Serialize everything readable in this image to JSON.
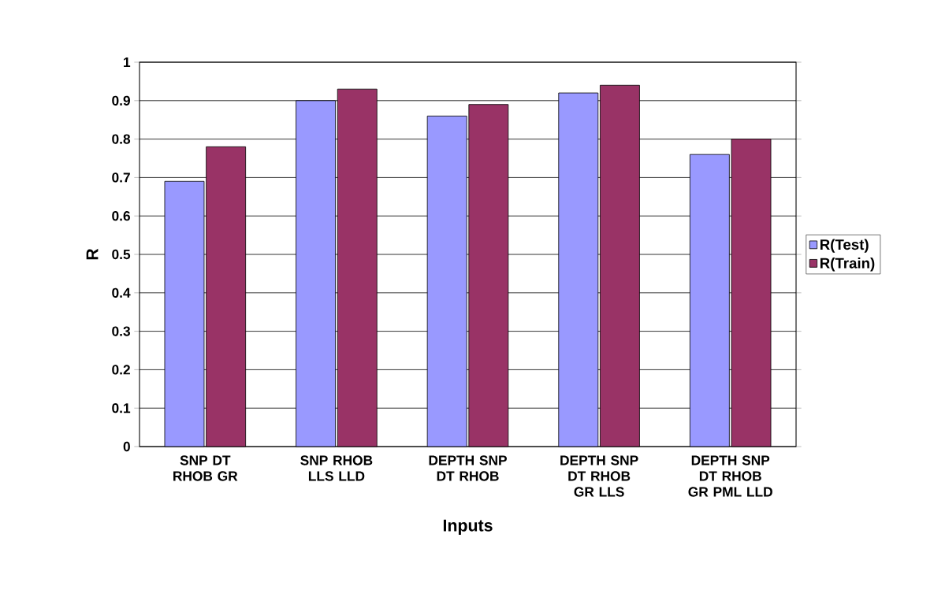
{
  "chart_data": {
    "type": "bar",
    "xlabel": "Inputs",
    "ylabel": "R",
    "categories": [
      "SNP DT RHOB GR",
      "SNP RHOB LLS LLD",
      "DEPTH SNP DT RHOB",
      "DEPTH SNP DT RHOB GR LLS",
      "DEPTH SNP DT RHOB GR PML LLD"
    ],
    "series": [
      {
        "name": "R(Test)",
        "color": "#9999ff",
        "values": [
          0.69,
          0.9,
          0.86,
          0.92,
          0.76
        ]
      },
      {
        "name": "R(Train)",
        "color": "#993366",
        "values": [
          0.78,
          0.93,
          0.89,
          0.94,
          0.8
        ]
      }
    ],
    "ylim": [
      0,
      1
    ],
    "yticks": [
      0,
      0.1,
      0.2,
      0.3,
      0.4,
      0.5,
      0.6,
      0.7,
      0.8,
      0.9,
      1
    ],
    "grid": "y",
    "legend": "right"
  }
}
